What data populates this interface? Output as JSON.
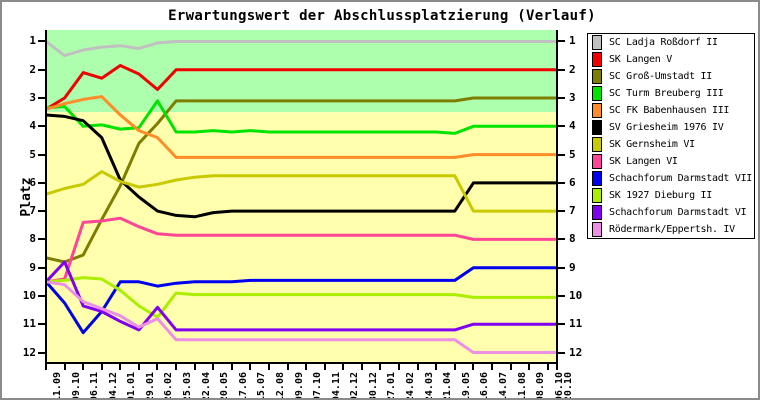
{
  "title": "Erwartungswert der Abschlussplatzierung (Verlauf)",
  "y_axis_label": "Platz",
  "y_ticks": [
    "1",
    "2",
    "3",
    "4",
    "5",
    "6",
    "7",
    "8",
    "9",
    "10",
    "11",
    "12"
  ],
  "colors": {
    "promotion_zone_bg": "#adffad",
    "lower_zone_bg": "#ffffad",
    "axis": "#000000",
    "frame_border": "#8a8a8a"
  },
  "chart_data": {
    "type": "line",
    "title": "Erwartungswert der Abschlussplatzierung (Verlauf)",
    "ylabel": "Platz",
    "ylim": [
      0.594,
      12.406
    ],
    "y_ticks": [
      1,
      2,
      3,
      4,
      5,
      6,
      7,
      8,
      9,
      10,
      11,
      12
    ],
    "y_inverted": true,
    "grid": false,
    "legend_position": "right",
    "zone_boundary_place": 3.5,
    "x_labels": [
      "11.09",
      "09.10",
      "06.11",
      "04.12",
      "01.01",
      "29.01",
      "26.02",
      "25.03",
      "22.04",
      "20.05",
      "17.06",
      "15.07",
      "12.08",
      "09.09",
      "07.10",
      "04.11",
      "02.12",
      "30.12",
      "27.01",
      "24.02",
      "24.03",
      "21.04",
      "19.05",
      "16.06",
      "14.07",
      "11.08",
      "08.09",
      "06.10",
      "20.10"
    ],
    "x_day_offsets": [
      0,
      28,
      56,
      84,
      112,
      140,
      168,
      196,
      224,
      252,
      280,
      308,
      336,
      364,
      392,
      420,
      448,
      476,
      504,
      532,
      560,
      588,
      616,
      644,
      672,
      700,
      728,
      756,
      770
    ],
    "series": [
      {
        "name": "SC Ladja Roßdorf II",
        "color": "#c0c0c0",
        "values": [
          1.0,
          1.5,
          1.3,
          1.2,
          1.15,
          1.25,
          1.05,
          1,
          1,
          1,
          1,
          1,
          1,
          1,
          1,
          1,
          1,
          1,
          1,
          1,
          1,
          1,
          1,
          1,
          1,
          1,
          1,
          1,
          1
        ]
      },
      {
        "name": "SK Langen V",
        "color": "#f00000",
        "values": [
          3.4,
          3.0,
          2.1,
          2.3,
          1.85,
          2.15,
          2.7,
          2,
          2,
          2,
          2,
          2,
          2,
          2,
          2,
          2,
          2,
          2,
          2,
          2,
          2,
          2,
          2,
          2,
          2,
          2,
          2,
          2,
          2
        ]
      },
      {
        "name": "SC Groß-Umstadt II",
        "color": "#7d7d00",
        "values": [
          8.65,
          8.8,
          8.55,
          7.3,
          6.1,
          4.6,
          3.9,
          3.1,
          3.1,
          3.1,
          3.1,
          3.1,
          3.1,
          3.1,
          3.1,
          3.1,
          3.1,
          3.1,
          3.1,
          3.1,
          3.1,
          3.1,
          3.1,
          3.0,
          3.0,
          3.0,
          3.0,
          3.0,
          3.0
        ]
      },
      {
        "name": "SC Turm Breuberg III",
        "color": "#00e400",
        "values": [
          3.35,
          3.3,
          4.0,
          3.95,
          4.1,
          4.05,
          3.1,
          4.2,
          4.2,
          4.15,
          4.2,
          4.15,
          4.2,
          4.2,
          4.2,
          4.2,
          4.2,
          4.2,
          4.2,
          4.2,
          4.2,
          4.2,
          4.25,
          4.0,
          4.0,
          4.0,
          4.0,
          4.0,
          4.0
        ]
      },
      {
        "name": "SC FK Babenhausen III",
        "color": "#ff8c28",
        "values": [
          3.4,
          3.2,
          3.05,
          2.95,
          3.6,
          4.15,
          4.4,
          5.1,
          5.1,
          5.1,
          5.1,
          5.1,
          5.1,
          5.1,
          5.1,
          5.1,
          5.1,
          5.1,
          5.1,
          5.1,
          5.1,
          5.1,
          5.1,
          5.0,
          5.0,
          5.0,
          5.0,
          5.0,
          5.0
        ]
      },
      {
        "name": "SV Griesheim 1976 IV",
        "color": "#000000",
        "values": [
          3.6,
          3.65,
          3.8,
          4.4,
          5.9,
          6.5,
          7.0,
          7.15,
          7.2,
          7.05,
          7,
          7,
          7,
          7,
          7,
          7,
          7,
          7,
          7,
          7,
          7,
          7,
          7,
          6,
          6,
          6,
          6,
          6,
          6
        ]
      },
      {
        "name": "SK Gernsheim VI",
        "color": "#c9c900",
        "values": [
          6.4,
          6.2,
          6.05,
          5.6,
          5.95,
          6.15,
          6.05,
          5.9,
          5.8,
          5.75,
          5.75,
          5.75,
          5.75,
          5.75,
          5.75,
          5.75,
          5.75,
          5.75,
          5.75,
          5.75,
          5.75,
          5.75,
          5.75,
          7,
          7,
          7,
          7,
          7,
          7
        ]
      },
      {
        "name": "SK Langen VI",
        "color": "#ff4596",
        "values": [
          9.5,
          9.4,
          7.4,
          7.35,
          7.25,
          7.55,
          7.8,
          7.85,
          7.85,
          7.85,
          7.85,
          7.85,
          7.85,
          7.85,
          7.85,
          7.85,
          7.85,
          7.85,
          7.85,
          7.85,
          7.85,
          7.85,
          7.85,
          8,
          8,
          8,
          8,
          8,
          8
        ]
      },
      {
        "name": "Schachforum Darmstadt VII",
        "color": "#0000f0",
        "values": [
          9.5,
          10.25,
          11.3,
          10.55,
          9.5,
          9.5,
          9.65,
          9.55,
          9.5,
          9.5,
          9.5,
          9.45,
          9.45,
          9.45,
          9.45,
          9.45,
          9.45,
          9.45,
          9.45,
          9.45,
          9.45,
          9.45,
          9.45,
          9,
          9,
          9,
          9,
          9,
          9
        ]
      },
      {
        "name": "SK 1927 Dieburg II",
        "color": "#abee00",
        "values": [
          9.5,
          9.45,
          9.35,
          9.4,
          9.8,
          10.35,
          10.75,
          9.9,
          9.95,
          9.95,
          9.95,
          9.95,
          9.95,
          9.95,
          9.95,
          9.95,
          9.95,
          9.95,
          9.95,
          9.95,
          9.95,
          9.95,
          9.95,
          10.05,
          10.05,
          10.05,
          10.05,
          10.05,
          10.05
        ]
      },
      {
        "name": "Schachforum Darmstadt VI",
        "color": "#8000f0",
        "values": [
          9.5,
          8.8,
          10.35,
          10.55,
          10.9,
          11.2,
          10.4,
          11.2,
          11.2,
          11.2,
          11.2,
          11.2,
          11.2,
          11.2,
          11.2,
          11.2,
          11.2,
          11.2,
          11.2,
          11.2,
          11.2,
          11.2,
          11.2,
          11,
          11,
          11,
          11,
          11,
          11
        ]
      },
      {
        "name": "Rödermark/Eppertsh. IV",
        "color": "#ee8fe6",
        "values": [
          9.5,
          9.6,
          10.2,
          10.45,
          10.7,
          11.1,
          10.8,
          11.55,
          11.55,
          11.55,
          11.55,
          11.55,
          11.55,
          11.55,
          11.55,
          11.55,
          11.55,
          11.55,
          11.55,
          11.55,
          11.55,
          11.55,
          11.55,
          12,
          12,
          12,
          12,
          12,
          12
        ]
      }
    ]
  }
}
